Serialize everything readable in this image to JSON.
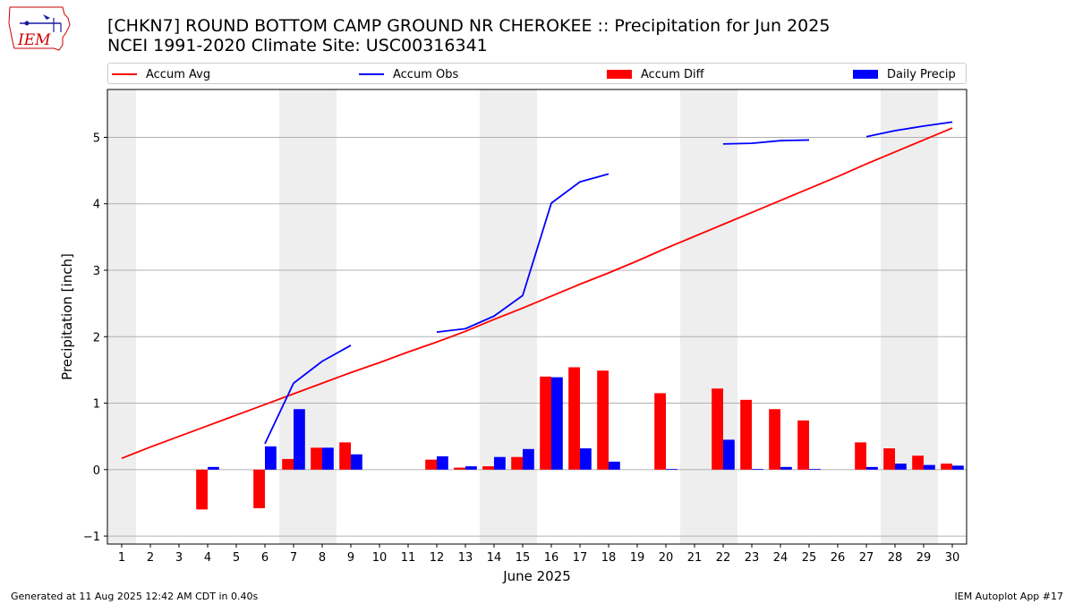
{
  "header": {
    "logo_text": "IEM",
    "title_line1": "[CHKN7] ROUND BOTTOM CAMP GROUND NR CHEROKEE :: Precipitation for Jun 2025",
    "title_line2": "NCEI 1991-2020 Climate Site: USC00316341"
  },
  "legend": {
    "items": [
      {
        "label": "Accum Avg",
        "kind": "line",
        "color": "#ff0000"
      },
      {
        "label": "Accum Obs",
        "kind": "line",
        "color": "#0000ff"
      },
      {
        "label": "Accum Diff",
        "kind": "box",
        "color": "#ff0000"
      },
      {
        "label": "Daily Precip",
        "kind": "box",
        "color": "#0000ff"
      }
    ]
  },
  "footer": {
    "left": "Generated at 11 Aug 2025 12:42 AM CDT in 0.40s",
    "right": "IEM Autoplot App #17"
  },
  "chart_data": {
    "type": "bar",
    "xlabel": "June 2025",
    "ylabel": "Precipitation [inch]",
    "xlim": [
      0.5,
      30.5
    ],
    "ylim": [
      -1.12,
      5.72
    ],
    "xticks": [
      1,
      2,
      3,
      4,
      5,
      6,
      7,
      8,
      9,
      10,
      11,
      12,
      13,
      14,
      15,
      16,
      17,
      18,
      19,
      20,
      21,
      22,
      23,
      24,
      25,
      26,
      27,
      28,
      29,
      30
    ],
    "yticks": [
      -1,
      0,
      1,
      2,
      3,
      4,
      5
    ],
    "grid": "horizontal",
    "weekend_shading": [
      [
        0.5,
        1.5
      ],
      [
        6.5,
        8.5
      ],
      [
        13.5,
        15.5
      ],
      [
        20.5,
        22.5
      ],
      [
        27.5,
        29.5
      ]
    ],
    "shade_color": "#eeeeee",
    "series": [
      {
        "name": "Accum Avg",
        "kind": "line",
        "color": "#ff0000",
        "x": [
          1,
          2,
          3,
          4,
          5,
          6,
          7,
          8,
          9,
          10,
          11,
          12,
          13,
          14,
          15,
          16,
          17,
          18,
          19,
          20,
          21,
          22,
          23,
          24,
          25,
          26,
          27,
          28,
          29,
          30
        ],
        "y": [
          0.17,
          0.34,
          0.5,
          0.66,
          0.82,
          0.98,
          1.14,
          1.3,
          1.46,
          1.61,
          1.77,
          1.92,
          2.08,
          2.26,
          2.43,
          2.61,
          2.79,
          2.96,
          3.14,
          3.33,
          3.51,
          3.69,
          3.87,
          4.05,
          4.23,
          4.41,
          4.6,
          4.78,
          4.96,
          5.14
        ]
      },
      {
        "name": "Accum Obs",
        "kind": "line",
        "color": "#0000ff",
        "segments": [
          {
            "x": [
              6,
              7,
              8,
              9
            ],
            "y": [
              0.39,
              1.3,
              1.63,
              1.87
            ]
          },
          {
            "x": [
              12,
              13,
              14,
              15,
              16,
              17,
              18
            ],
            "y": [
              2.07,
              2.12,
              2.31,
              2.62,
              4.01,
              4.33,
              4.45
            ]
          },
          {
            "x": [
              22,
              23,
              24,
              25
            ],
            "y": [
              4.9,
              4.91,
              4.95,
              4.96
            ]
          },
          {
            "x": [
              27,
              28,
              29,
              30
            ],
            "y": [
              5.01,
              5.1,
              5.17,
              5.23
            ]
          }
        ]
      },
      {
        "name": "Accum Diff",
        "kind": "bar",
        "color": "#ff0000",
        "offset": -0.2,
        "x": [
          4,
          6,
          7,
          8,
          9,
          12,
          13,
          14,
          15,
          16,
          17,
          18,
          20,
          22,
          23,
          24,
          25,
          27,
          28,
          29,
          30
        ],
        "values": [
          -0.6,
          -0.58,
          0.16,
          0.33,
          0.41,
          0.15,
          0.03,
          0.05,
          0.19,
          1.4,
          1.54,
          1.49,
          1.15,
          1.22,
          1.05,
          0.91,
          0.74,
          0.41,
          0.32,
          0.21,
          0.09
        ]
      },
      {
        "name": "Daily Precip",
        "kind": "bar",
        "color": "#0000ff",
        "offset": 0.2,
        "x": [
          4,
          6,
          7,
          8,
          9,
          12,
          13,
          14,
          15,
          16,
          17,
          18,
          20,
          22,
          23,
          24,
          25,
          27,
          28,
          29,
          30
        ],
        "values": [
          0.04,
          0.35,
          0.91,
          0.33,
          0.23,
          0.2,
          0.05,
          0.19,
          0.31,
          1.39,
          0.32,
          0.12,
          0.01,
          0.45,
          0.01,
          0.04,
          0.01,
          0.04,
          0.09,
          0.07,
          0.06
        ]
      }
    ]
  }
}
